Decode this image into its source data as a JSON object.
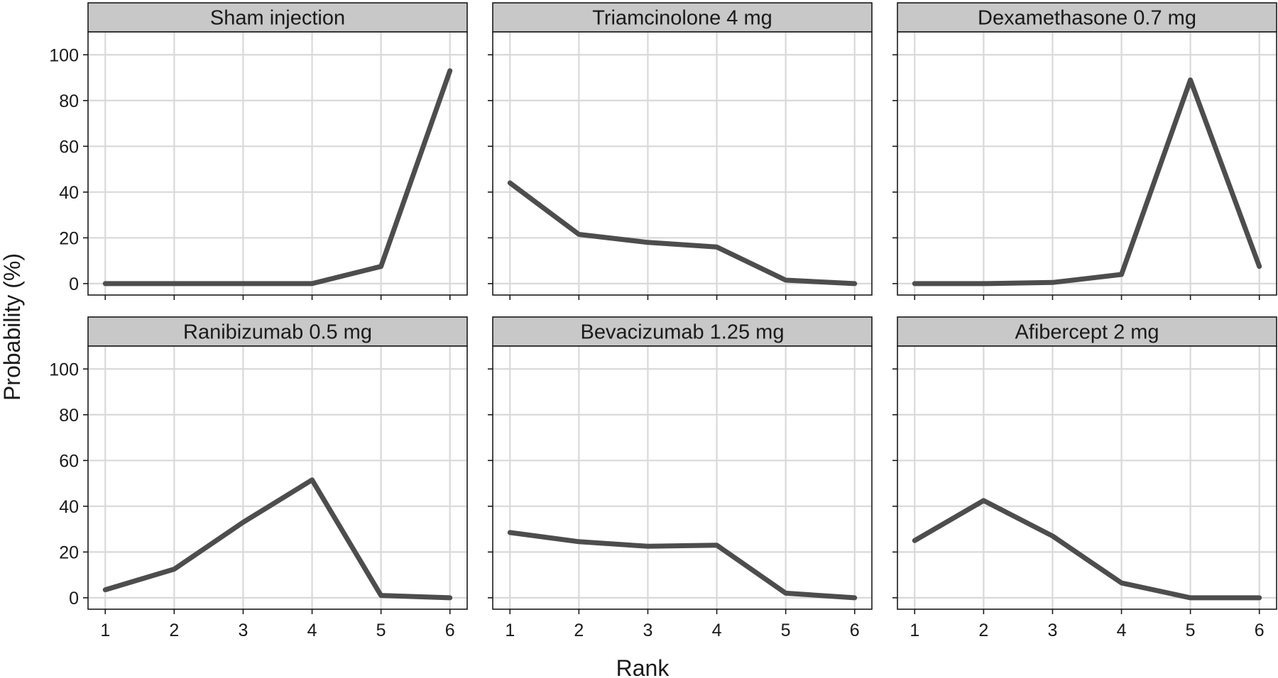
{
  "chart_data": {
    "type": "line",
    "layout": "facet-grid",
    "facet_rows": 2,
    "facet_cols": 3,
    "xlabel": "Rank",
    "ylabel": "Probability (%)",
    "x": [
      1,
      2,
      3,
      4,
      5,
      6
    ],
    "xticks": [
      1,
      2,
      3,
      4,
      5,
      6
    ],
    "yticks": [
      0,
      20,
      40,
      60,
      80,
      100
    ],
    "xlim": [
      0.75,
      6.25
    ],
    "ylim": [
      -5,
      110
    ],
    "grid": true,
    "colors": {
      "line": "#4d4d4d",
      "strip": "#c8c8c8",
      "grid": "#d9d9d9"
    },
    "panels": [
      {
        "title": "Sham injection",
        "values": [
          0,
          0,
          0,
          0,
          7.5,
          93
        ]
      },
      {
        "title": "Triamcinolone 4 mg",
        "values": [
          44,
          21.5,
          18,
          16,
          1.5,
          0
        ]
      },
      {
        "title": "Dexamethasone 0.7 mg",
        "values": [
          0,
          0,
          0.5,
          4,
          89,
          7.5
        ]
      },
      {
        "title": "Ranibizumab 0.5 mg",
        "values": [
          3.5,
          12.5,
          33,
          51.5,
          1,
          0
        ]
      },
      {
        "title": "Bevacizumab 1.25 mg",
        "values": [
          28.5,
          24.5,
          22.5,
          23,
          2,
          0
        ]
      },
      {
        "title": "Afibercept 2 mg",
        "values": [
          25,
          42.5,
          27,
          6.5,
          0,
          0
        ]
      }
    ]
  }
}
